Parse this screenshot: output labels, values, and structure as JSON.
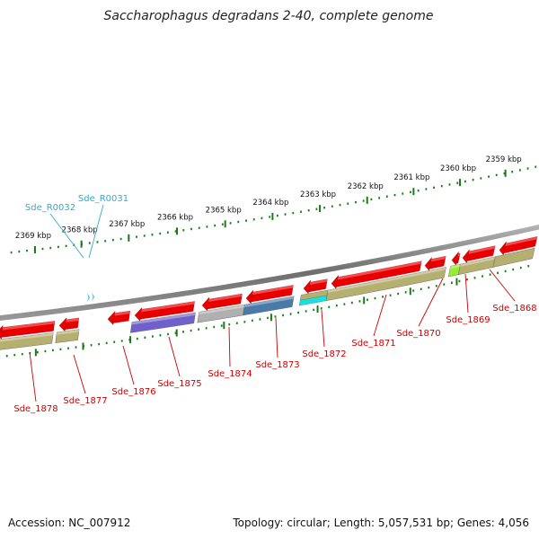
{
  "title": "Saccharophagus degradans 2-40, complete genome",
  "accession": "Accession: NC_007912",
  "topology": "Topology: circular; Length: 5,057,531 bp; Genes: 4,056",
  "colors": {
    "gene_label": "#cc0000",
    "rna_label": "#33aacc",
    "backbone": "#808080",
    "tick": "#1a7a1a"
  },
  "kbp_ticks": [
    "2369 kbp",
    "2368 kbp",
    "2367 kbp",
    "2366 kbp",
    "2365 kbp",
    "2364 kbp",
    "2363 kbp",
    "2362 kbp",
    "2361 kbp",
    "2360 kbp",
    "2359 kbp"
  ],
  "genes": [
    {
      "label": "Sde_1878",
      "strand": "-",
      "fill": "#e80000",
      "cog_color": "#b5b070"
    },
    {
      "label": "Sde_1877",
      "strand": "-",
      "fill": "#e80000",
      "cog_color": "#b5b070"
    },
    {
      "label": "Sde_1876",
      "strand": "-",
      "fill": "#e80000",
      "cog_color": null
    },
    {
      "label": "Sde_1875",
      "strand": "-",
      "fill": "#e80000",
      "cog_color": "#7060cc"
    },
    {
      "label": "Sde_1874",
      "strand": "-",
      "fill": "#e80000",
      "cog_color": "#b0b0b0"
    },
    {
      "label": "Sde_1873",
      "strand": "-",
      "fill": "#e80000",
      "cog_color": "#4a7aaa"
    },
    {
      "label": "Sde_1872",
      "strand": "-",
      "fill": "#e80000",
      "cog_color": "#b5b070",
      "cog_color2": "#22dddd"
    },
    {
      "label": "Sde_1871",
      "strand": "-",
      "fill": "#e80000",
      "cog_color": "#b5b070"
    },
    {
      "label": "Sde_1870",
      "strand": "-",
      "fill": "#e80000",
      "cog_color": null
    },
    {
      "label": "Sde_1869",
      "strand": "-",
      "fill": "#e80000",
      "cog_color": "#99ee33"
    },
    {
      "label": "Sde_1868",
      "strand": "-",
      "fill": "#e80000",
      "cog_color": "#b5b070"
    }
  ],
  "rnas": [
    {
      "label": "Sde_R0032"
    },
    {
      "label": "Sde_R0031"
    }
  ]
}
